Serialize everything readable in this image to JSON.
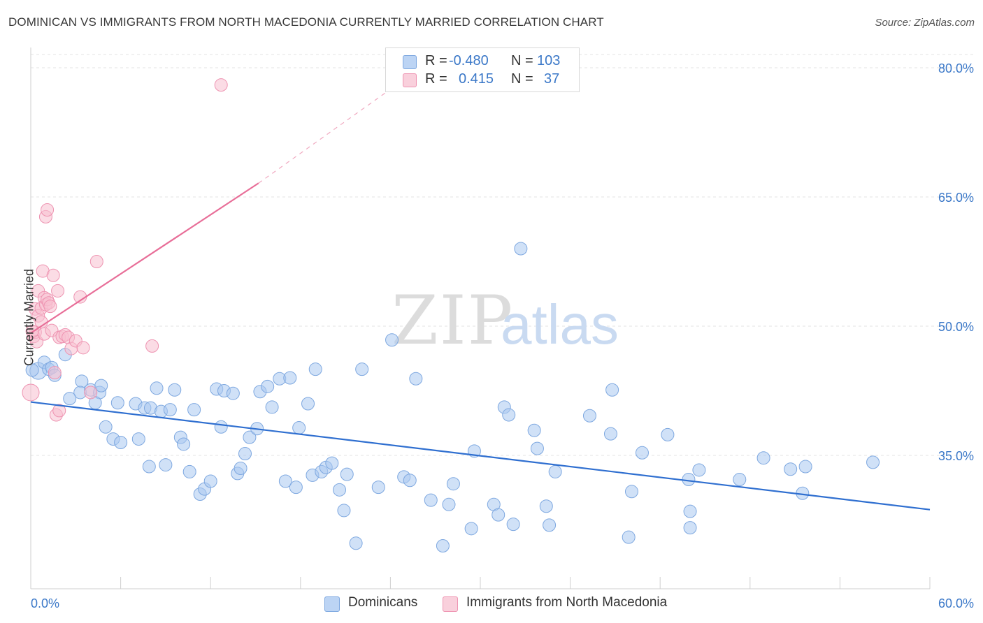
{
  "title": "DOMINICAN VS IMMIGRANTS FROM NORTH MACEDONIA CURRENTLY MARRIED CORRELATION CHART",
  "source": "Source: ZipAtlas.com",
  "watermark": {
    "zip": "ZIP",
    "atlas": "atlas"
  },
  "legend": {
    "rows": [
      {
        "r_label": "R =",
        "r_value": "-0.480",
        "n_label": "N =",
        "n_value": "103",
        "color": "#a9c8f0",
        "border": "#7ea8e0"
      },
      {
        "r_label": "R =",
        "r_value": "0.415",
        "n_label": "N =",
        "n_value": "37",
        "color": "#f7bfd0",
        "border": "#ee93b1"
      }
    ]
  },
  "bottom_legend": [
    {
      "label": "Dominicans",
      "color": "#a9c8f0",
      "border": "#7ea8e0"
    },
    {
      "label": "Immigrants from North Macedonia",
      "color": "#f7bfd0",
      "border": "#ee93b1"
    }
  ],
  "chart_data": {
    "type": "scatter",
    "title": "DOMINICAN VS IMMIGRANTS FROM NORTH MACEDONIA CURRENTLY MARRIED CORRELATION CHART",
    "xlabel": "",
    "ylabel": "Currently Married",
    "xlim": [
      0,
      60
    ],
    "ylim": [
      20,
      83
    ],
    "x_tick_labels": [
      {
        "value": 0,
        "label": "0.0%"
      },
      {
        "value": 60,
        "label": "60.0%"
      }
    ],
    "y_tick_labels": [
      {
        "value": 35,
        "label": "35.0%"
      },
      {
        "value": 50,
        "label": "50.0%"
      },
      {
        "value": 65,
        "label": "65.0%"
      },
      {
        "value": 80,
        "label": "80.0%"
      }
    ],
    "series": [
      {
        "name": "Dominicans",
        "color": "#a9c8f0",
        "stroke": "#7ea8e0",
        "trend": {
          "x": [
            0,
            60
          ],
          "y": [
            41.2,
            28.7
          ],
          "color": "#2f6fd0"
        },
        "points": [
          [
            0.5,
            44.8
          ],
          [
            0.9,
            45.8
          ],
          [
            1.2,
            45.0
          ],
          [
            1.4,
            45.2
          ],
          [
            1.6,
            44.3
          ],
          [
            2.3,
            46.7
          ],
          [
            3.4,
            43.6
          ],
          [
            3.3,
            42.3
          ],
          [
            2.6,
            41.6
          ],
          [
            4.0,
            42.6
          ],
          [
            4.6,
            42.3
          ],
          [
            4.3,
            41.1
          ],
          [
            4.7,
            43.1
          ],
          [
            5.0,
            38.3
          ],
          [
            5.5,
            36.9
          ],
          [
            5.8,
            41.1
          ],
          [
            6.0,
            36.5
          ],
          [
            7.0,
            41.0
          ],
          [
            7.2,
            36.9
          ],
          [
            7.6,
            40.5
          ],
          [
            8.0,
            40.5
          ],
          [
            7.9,
            33.7
          ],
          [
            8.4,
            42.8
          ],
          [
            8.7,
            40.1
          ],
          [
            9.0,
            33.9
          ],
          [
            9.3,
            40.3
          ],
          [
            9.6,
            42.6
          ],
          [
            10.0,
            37.1
          ],
          [
            10.2,
            36.3
          ],
          [
            10.6,
            33.1
          ],
          [
            10.9,
            40.3
          ],
          [
            11.3,
            30.5
          ],
          [
            11.6,
            31.1
          ],
          [
            12.0,
            32.0
          ],
          [
            12.4,
            42.7
          ],
          [
            12.7,
            38.3
          ],
          [
            12.9,
            42.5
          ],
          [
            13.5,
            42.2
          ],
          [
            13.8,
            32.9
          ],
          [
            14.0,
            33.5
          ],
          [
            14.3,
            35.2
          ],
          [
            14.6,
            37.1
          ],
          [
            15.1,
            38.1
          ],
          [
            15.3,
            42.4
          ],
          [
            15.8,
            43.0
          ],
          [
            16.1,
            40.6
          ],
          [
            16.6,
            43.9
          ],
          [
            17.0,
            32.0
          ],
          [
            17.3,
            44.0
          ],
          [
            17.7,
            31.3
          ],
          [
            17.9,
            38.2
          ],
          [
            18.5,
            41.0
          ],
          [
            18.8,
            32.7
          ],
          [
            19.0,
            45.0
          ],
          [
            19.4,
            33.1
          ],
          [
            19.7,
            33.6
          ],
          [
            20.1,
            34.1
          ],
          [
            20.6,
            31.0
          ],
          [
            20.9,
            28.6
          ],
          [
            21.1,
            32.8
          ],
          [
            21.7,
            24.8
          ],
          [
            22.1,
            45.0
          ],
          [
            23.2,
            31.3
          ],
          [
            24.1,
            48.4
          ],
          [
            24.9,
            32.5
          ],
          [
            25.3,
            32.1
          ],
          [
            25.7,
            43.9
          ],
          [
            26.7,
            29.8
          ],
          [
            27.5,
            24.5
          ],
          [
            27.9,
            29.3
          ],
          [
            28.2,
            31.7
          ],
          [
            29.4,
            26.5
          ],
          [
            29.6,
            35.5
          ],
          [
            30.9,
            29.3
          ],
          [
            31.2,
            28.1
          ],
          [
            31.6,
            40.6
          ],
          [
            31.9,
            39.7
          ],
          [
            32.2,
            27.0
          ],
          [
            32.7,
            59.0
          ],
          [
            33.6,
            37.9
          ],
          [
            33.8,
            35.8
          ],
          [
            34.4,
            29.1
          ],
          [
            34.6,
            26.9
          ],
          [
            35.0,
            33.1
          ],
          [
            37.3,
            39.6
          ],
          [
            38.7,
            37.5
          ],
          [
            38.8,
            42.6
          ],
          [
            39.9,
            25.5
          ],
          [
            40.1,
            30.8
          ],
          [
            40.8,
            35.3
          ],
          [
            42.5,
            37.4
          ],
          [
            43.9,
            32.2
          ],
          [
            44.0,
            28.5
          ],
          [
            44.0,
            26.6
          ],
          [
            44.6,
            33.3
          ],
          [
            47.3,
            32.2
          ],
          [
            48.9,
            34.7
          ],
          [
            50.7,
            33.4
          ],
          [
            51.5,
            30.6
          ],
          [
            51.7,
            33.7
          ],
          [
            56.2,
            34.2
          ],
          [
            0.1,
            44.9
          ]
        ]
      },
      {
        "name": "Immigrants from North Macedonia",
        "color": "#f7bfd0",
        "stroke": "#ee93b1",
        "trend": {
          "x": [
            0,
            15.2
          ],
          "y": [
            49.2,
            66.6
          ],
          "color": "#e86e98",
          "dashed_to": {
            "x": 24.0,
            "y": 77.5
          }
        },
        "points": [
          [
            0.0,
            42.3
          ],
          [
            0.2,
            48.8
          ],
          [
            0.3,
            49.3
          ],
          [
            0.3,
            52.0
          ],
          [
            0.4,
            48.2
          ],
          [
            0.5,
            51.2
          ],
          [
            0.5,
            54.1
          ],
          [
            0.7,
            50.5
          ],
          [
            0.7,
            52.1
          ],
          [
            0.8,
            56.4
          ],
          [
            0.9,
            49.1
          ],
          [
            0.9,
            53.3
          ],
          [
            1.0,
            52.5
          ],
          [
            1.0,
            62.7
          ],
          [
            1.1,
            63.5
          ],
          [
            1.1,
            53.1
          ],
          [
            1.2,
            52.7
          ],
          [
            1.3,
            52.3
          ],
          [
            1.4,
            49.5
          ],
          [
            1.5,
            55.9
          ],
          [
            1.6,
            44.6
          ],
          [
            1.7,
            39.7
          ],
          [
            1.8,
            54.1
          ],
          [
            1.9,
            40.2
          ],
          [
            1.9,
            48.7
          ],
          [
            2.1,
            48.8
          ],
          [
            2.3,
            49.0
          ],
          [
            2.5,
            48.7
          ],
          [
            2.7,
            47.4
          ],
          [
            3.0,
            48.3
          ],
          [
            3.3,
            53.4
          ],
          [
            3.5,
            47.5
          ],
          [
            4.0,
            42.3
          ],
          [
            4.4,
            57.5
          ],
          [
            8.1,
            47.7
          ],
          [
            12.7,
            78.0
          ],
          [
            0.1,
            49.4
          ]
        ]
      }
    ]
  }
}
